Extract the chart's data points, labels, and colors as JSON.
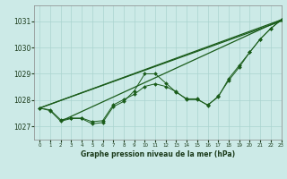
{
  "title": "Graphe pression niveau de la mer (hPa)",
  "bg_color": "#cceae7",
  "grid_color": "#aad4d0",
  "line_color": "#1a5c1a",
  "xlim": [
    -0.5,
    23
  ],
  "ylim": [
    1026.5,
    1031.6
  ],
  "yticks": [
    1027,
    1028,
    1029,
    1030,
    1031
  ],
  "xticks": [
    0,
    1,
    2,
    3,
    4,
    5,
    6,
    7,
    8,
    9,
    10,
    11,
    12,
    13,
    14,
    15,
    16,
    17,
    18,
    19,
    20,
    21,
    22,
    23
  ],
  "straight_lines": [
    [
      [
        0,
        1027.7
      ],
      [
        23,
        1031.05
      ]
    ],
    [
      [
        0,
        1027.7
      ],
      [
        23,
        1031.0
      ]
    ],
    [
      [
        2,
        1027.2
      ],
      [
        23,
        1031.05
      ]
    ]
  ],
  "wiggly_series": [
    1027.7,
    1027.6,
    1027.2,
    1027.3,
    1027.3,
    1027.1,
    1027.15,
    1027.75,
    1027.95,
    1028.35,
    1029.0,
    1029.0,
    1028.65,
    1028.3,
    1028.05,
    1028.05,
    1027.8,
    1028.15,
    1028.75,
    1029.25,
    1029.82,
    1030.32,
    1030.72,
    1031.05
  ],
  "smooth_series": [
    1027.7,
    1027.63,
    1027.25,
    1027.32,
    1027.32,
    1027.18,
    1027.22,
    1027.82,
    1028.02,
    1028.22,
    1028.52,
    1028.62,
    1028.52,
    1028.32,
    1028.02,
    1028.02,
    1027.82,
    1028.12,
    1028.82,
    1029.32,
    1029.82,
    1030.32,
    1030.72,
    1031.05
  ]
}
